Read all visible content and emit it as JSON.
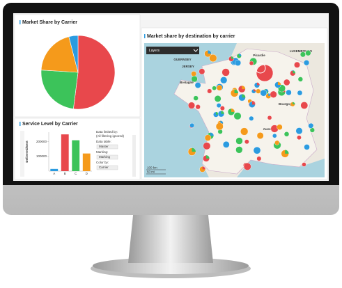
{
  "pie_chart": {
    "type": "pie",
    "title": "Market Share by Carrier",
    "values": [
      52,
      24,
      20,
      4
    ],
    "colors": [
      "#e8484c",
      "#3cc35a",
      "#f59a1b",
      "#2b9be0"
    ]
  },
  "bar_chart": {
    "type": "bar",
    "title": "Service Level by Carrier",
    "y_label": "Delivered/Sent",
    "categories": [
      "A",
      "B",
      "C",
      "D"
    ],
    "values": [
      15000,
      250000,
      210000,
      120000
    ],
    "colors": [
      "#2b9be0",
      "#e8484c",
      "#3cc35a",
      "#f59a1b"
    ],
    "ylim": [
      0,
      265000
    ],
    "yticks": [
      100000,
      200000
    ]
  },
  "settings_panel": {
    "items": [
      "Data limited by:",
      "(All filtering ignored)",
      "Data table:",
      "Master",
      "Marking:",
      "Marking",
      "Color by:",
      "Carrier"
    ]
  },
  "map": {
    "title": "Market share by destination by carrier",
    "layers_label": "Layers",
    "places": [
      "GUERNSEY",
      "JERSEY",
      "Bretagne",
      "Picardie",
      "LUXEMBOURG",
      "Bourgogne",
      "Auvergne"
    ],
    "scale": [
      "100 km",
      "50 mi"
    ]
  }
}
